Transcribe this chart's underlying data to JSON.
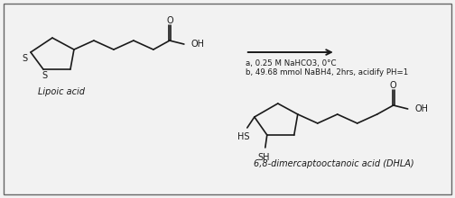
{
  "bg_color": "#f2f2f2",
  "border_color": "#666666",
  "line_color": "#1a1a1a",
  "text_color": "#1a1a1a",
  "reaction_line_text_a": "a, 0.25 M NaHCO3, 0°C",
  "reaction_line_text_b": "b, 49.68 mmol NaBH4, 2hrs, acidify PH=1",
  "label_lipoic": "Lipoic acid",
  "label_dhla": "6,8-dimercaptooctanoic acid (DHLA)",
  "font_family": "DejaVu Sans",
  "font_size_label": 7.0,
  "font_size_reaction": 6.2,
  "font_size_atom": 7.0
}
